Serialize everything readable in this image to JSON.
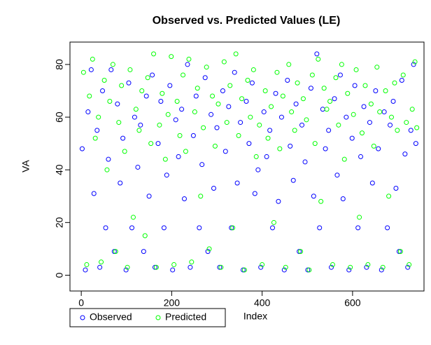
{
  "chart_data": {
    "type": "scatter",
    "title": "Observed vs. Predicted Values (LE)",
    "xlabel": "Index",
    "ylabel": "VA",
    "xlim": [
      -25,
      758
    ],
    "ylim": [
      -6,
      88.5
    ],
    "xticks": [
      0,
      200,
      400,
      600
    ],
    "yticks": [
      0,
      20,
      40,
      60,
      80
    ],
    "legend": "bottom-left",
    "series": [
      {
        "name": "Observed",
        "color": "#0000ff",
        "x": [
          2,
          9,
          15,
          22,
          28,
          35,
          41,
          47,
          54,
          60,
          66,
          73,
          80,
          86,
          92,
          99,
          105,
          112,
          118,
          125,
          131,
          138,
          144,
          150,
          157,
          163,
          170,
          176,
          183,
          189,
          196,
          202,
          209,
          215,
          222,
          228,
          235,
          241,
          248,
          254,
          261,
          267,
          274,
          280,
          287,
          293,
          300,
          306,
          313,
          319,
          326,
          332,
          339,
          345,
          352,
          358,
          365,
          371,
          378,
          384,
          391,
          397,
          404,
          410,
          417,
          423,
          430,
          436,
          443,
          449,
          456,
          462,
          469,
          475,
          482,
          488,
          495,
          501,
          508,
          514,
          521,
          527,
          534,
          540,
          547,
          553,
          560,
          566,
          573,
          579,
          586,
          592,
          599,
          605,
          612,
          618,
          625,
          631,
          638,
          644,
          651,
          657,
          664,
          670,
          677,
          683,
          690,
          696,
          703,
          709,
          716,
          722,
          729,
          735,
          740
        ],
        "values": [
          48,
          2,
          62,
          78,
          31,
          55,
          3,
          70,
          18,
          44,
          78,
          9,
          65,
          35,
          52,
          2,
          73,
          18,
          60,
          41,
          57,
          9,
          68,
          30,
          76,
          3,
          50,
          66,
          18,
          38,
          72,
          2,
          59,
          45,
          63,
          29,
          80,
          3,
          53,
          68,
          18,
          42,
          75,
          9,
          61,
          33,
          56,
          3,
          70,
          47,
          64,
          18,
          77,
          35,
          58,
          2,
          66,
          50,
          73,
          31,
          40,
          3,
          62,
          45,
          55,
          18,
          69,
          28,
          60,
          2,
          74,
          49,
          36,
          65,
          9,
          57,
          43,
          2,
          71,
          30,
          84,
          18,
          63,
          48,
          55,
          3,
          67,
          38,
          76,
          29,
          60,
          2,
          52,
          72,
          18,
          45,
          64,
          3,
          58,
          35,
          70,
          48,
          2,
          62,
          18,
          57,
          66,
          33,
          9,
          74,
          46,
          3,
          55,
          80,
          50
        ]
      },
      {
        "name": "Predicted",
        "color": "#00ff00",
        "x": [
          5,
          12,
          18,
          25,
          31,
          38,
          44,
          51,
          57,
          63,
          70,
          76,
          83,
          89,
          96,
          102,
          108,
          115,
          121,
          128,
          134,
          141,
          147,
          154,
          160,
          166,
          173,
          179,
          186,
          192,
          199,
          205,
          212,
          218,
          225,
          231,
          238,
          244,
          251,
          257,
          264,
          270,
          277,
          283,
          290,
          296,
          303,
          309,
          316,
          322,
          329,
          335,
          342,
          348,
          355,
          361,
          368,
          374,
          381,
          387,
          394,
          400,
          407,
          413,
          420,
          426,
          433,
          439,
          446,
          452,
          459,
          465,
          472,
          478,
          485,
          491,
          498,
          504,
          511,
          517,
          524,
          530,
          537,
          543,
          550,
          556,
          563,
          569,
          576,
          582,
          589,
          595,
          602,
          608,
          615,
          621,
          628,
          634,
          641,
          647,
          654,
          660,
          667,
          673,
          680,
          686,
          693,
          699,
          706,
          712,
          719,
          725,
          732,
          738,
          742
        ],
        "values": [
          77,
          4,
          68,
          82,
          52,
          60,
          5,
          74,
          40,
          66,
          80,
          9,
          58,
          72,
          47,
          3,
          78,
          22,
          63,
          55,
          70,
          15,
          75,
          50,
          84,
          3,
          57,
          69,
          44,
          61,
          83,
          4,
          66,
          53,
          76,
          47,
          82,
          5,
          62,
          71,
          30,
          56,
          79,
          10,
          68,
          49,
          65,
          3,
          81,
          58,
          72,
          18,
          84,
          53,
          67,
          2,
          74,
          60,
          78,
          45,
          57,
          4,
          70,
          52,
          64,
          20,
          77,
          48,
          68,
          3,
          80,
          62,
          55,
          73,
          9,
          67,
          59,
          2,
          76,
          50,
          82,
          28,
          71,
          63,
          66,
          4,
          75,
          57,
          80,
          44,
          69,
          3,
          61,
          78,
          22,
          54,
          72,
          4,
          65,
          49,
          79,
          62,
          3,
          70,
          30,
          60,
          73,
          55,
          9,
          76,
          58,
          4,
          63,
          81,
          56
        ]
      }
    ]
  }
}
